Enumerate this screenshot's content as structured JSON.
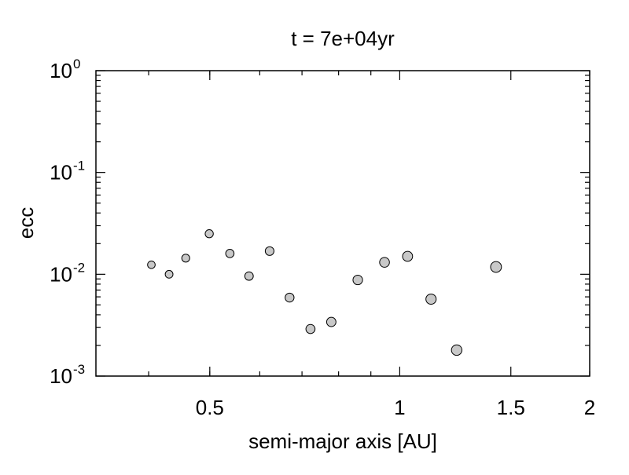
{
  "chart_data": {
    "type": "scatter",
    "title": "t = 7e+04yr",
    "xlabel": "semi-major axis [AU]",
    "ylabel": "ecc",
    "x_scale": "log",
    "y_scale": "log",
    "xlim": [
      0.33,
      2.0
    ],
    "ylim": [
      0.001,
      1.0
    ],
    "x_ticks": [
      {
        "value": 0.5,
        "label": "0.5"
      },
      {
        "value": 1.0,
        "label": "1"
      },
      {
        "value": 1.5,
        "label": "1.5"
      },
      {
        "value": 2.0,
        "label": "2"
      }
    ],
    "y_ticks": [
      {
        "value": 1.0,
        "base": "10",
        "exp": "0"
      },
      {
        "value": 0.1,
        "base": "10",
        "exp": "-1"
      },
      {
        "value": 0.01,
        "base": "10",
        "exp": "-2"
      },
      {
        "value": 0.001,
        "base": "10",
        "exp": "-3"
      }
    ],
    "grid": false,
    "marker_color": "#c8c8c8",
    "marker_edge_color": "#000000",
    "points": [
      {
        "x": 0.404,
        "y": 0.0124
      },
      {
        "x": 0.431,
        "y": 0.01
      },
      {
        "x": 0.458,
        "y": 0.0144
      },
      {
        "x": 0.499,
        "y": 0.025
      },
      {
        "x": 0.538,
        "y": 0.016
      },
      {
        "x": 0.577,
        "y": 0.0096
      },
      {
        "x": 0.622,
        "y": 0.0169
      },
      {
        "x": 0.669,
        "y": 0.0059
      },
      {
        "x": 0.722,
        "y": 0.0029
      },
      {
        "x": 0.779,
        "y": 0.0034
      },
      {
        "x": 0.858,
        "y": 0.0088
      },
      {
        "x": 0.946,
        "y": 0.0131
      },
      {
        "x": 1.029,
        "y": 0.015
      },
      {
        "x": 1.121,
        "y": 0.0057
      },
      {
        "x": 1.231,
        "y": 0.0018
      },
      {
        "x": 1.421,
        "y": 0.0118
      }
    ]
  }
}
